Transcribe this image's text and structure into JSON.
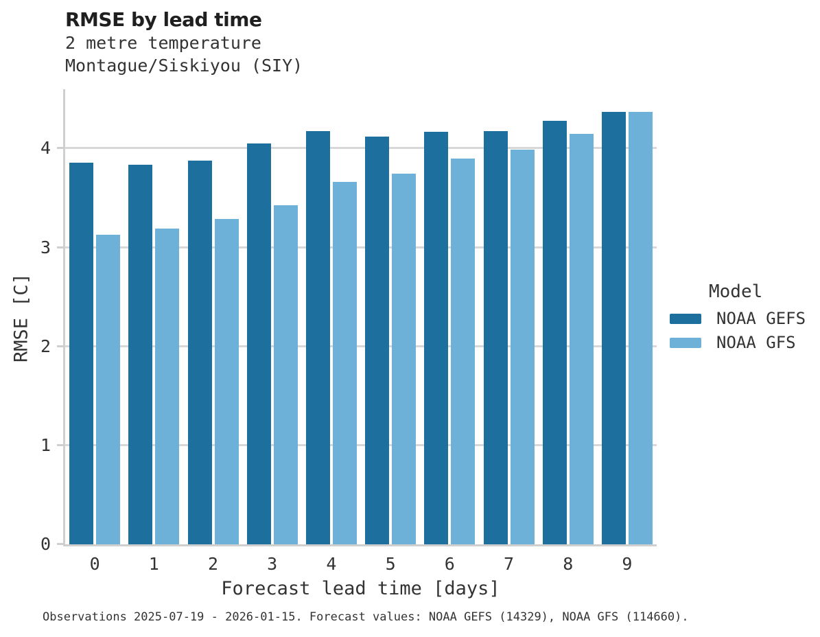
{
  "chart_data": {
    "type": "bar",
    "title": "RMSE by lead time",
    "subtitle_lines": [
      "2 metre temperature",
      "Montague/Siskiyou (SIY)"
    ],
    "xlabel": "Forecast lead time [days]",
    "ylabel": "RMSE [C]",
    "categories": [
      "0",
      "1",
      "2",
      "3",
      "4",
      "5",
      "6",
      "7",
      "8",
      "9"
    ],
    "series": [
      {
        "name": "NOAA GEFS",
        "color": "#1d6f9e",
        "values": [
          3.86,
          3.84,
          3.88,
          4.05,
          4.18,
          4.12,
          4.17,
          4.18,
          4.28,
          4.37
        ]
      },
      {
        "name": "NOAA GFS",
        "color": "#6db1d8",
        "values": [
          3.13,
          3.19,
          3.29,
          3.43,
          3.66,
          3.75,
          3.9,
          3.99,
          4.15,
          4.37
        ]
      }
    ],
    "yticks": [
      0,
      1,
      2,
      3,
      4
    ],
    "ylim": [
      0,
      4.6
    ],
    "grid": "horizontal",
    "legend": {
      "title": "Model",
      "position": "right"
    },
    "caption": "Observations 2025-07-19 - 2026-01-15. Forecast values: NOAA GEFS (14329), NOAA GFS (114660)."
  },
  "colors": {
    "series_dark": "#1d6f9e",
    "series_light": "#6db1d8",
    "gridline": "#d8d8d8",
    "axis_line": "#cfcfcf",
    "text": "#333333",
    "title_text": "#1f1f1f"
  }
}
